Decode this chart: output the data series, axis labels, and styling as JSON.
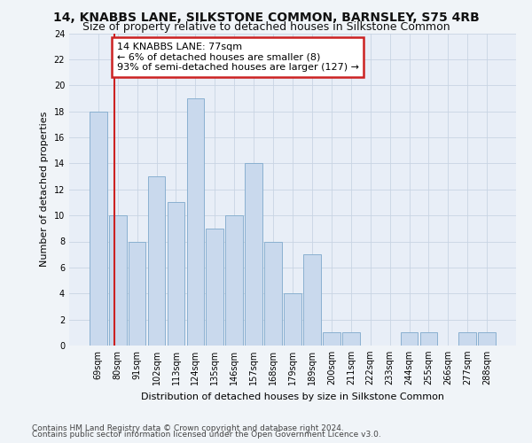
{
  "title": "14, KNABBS LANE, SILKSTONE COMMON, BARNSLEY, S75 4RB",
  "subtitle": "Size of property relative to detached houses in Silkstone Common",
  "xlabel": "Distribution of detached houses by size in Silkstone Common",
  "ylabel": "Number of detached properties",
  "footnote1": "Contains HM Land Registry data © Crown copyright and database right 2024.",
  "footnote2": "Contains public sector information licensed under the Open Government Licence v3.0.",
  "categories": [
    "69sqm",
    "80sqm",
    "91sqm",
    "102sqm",
    "113sqm",
    "124sqm",
    "135sqm",
    "146sqm",
    "157sqm",
    "168sqm",
    "179sqm",
    "189sqm",
    "200sqm",
    "211sqm",
    "222sqm",
    "233sqm",
    "244sqm",
    "255sqm",
    "266sqm",
    "277sqm",
    "288sqm"
  ],
  "values": [
    18,
    10,
    8,
    13,
    11,
    19,
    9,
    10,
    14,
    8,
    4,
    7,
    1,
    1,
    0,
    0,
    1,
    1,
    0,
    1,
    1
  ],
  "bar_color": "#c9d9ed",
  "bar_edge_color": "#8ab0d0",
  "annotation_text_line1": "14 KNABBS LANE: 77sqm",
  "annotation_text_line2": "← 6% of detached houses are smaller (8)",
  "annotation_text_line3": "93% of semi-detached houses are larger (127) →",
  "annotation_box_facecolor": "#ffffff",
  "annotation_box_edgecolor": "#cc2222",
  "vline_color": "#cc2222",
  "vline_x_index": 0.82,
  "ylim": [
    0,
    24
  ],
  "yticks": [
    0,
    2,
    4,
    6,
    8,
    10,
    12,
    14,
    16,
    18,
    20,
    22,
    24
  ],
  "grid_color": "#c8d4e3",
  "bg_color": "#e8eef7",
  "fig_bg_color": "#f0f4f8",
  "title_fontsize": 10,
  "subtitle_fontsize": 9,
  "axis_label_fontsize": 8,
  "tick_fontsize": 7,
  "annot_fontsize": 8,
  "footnote_fontsize": 6.5
}
